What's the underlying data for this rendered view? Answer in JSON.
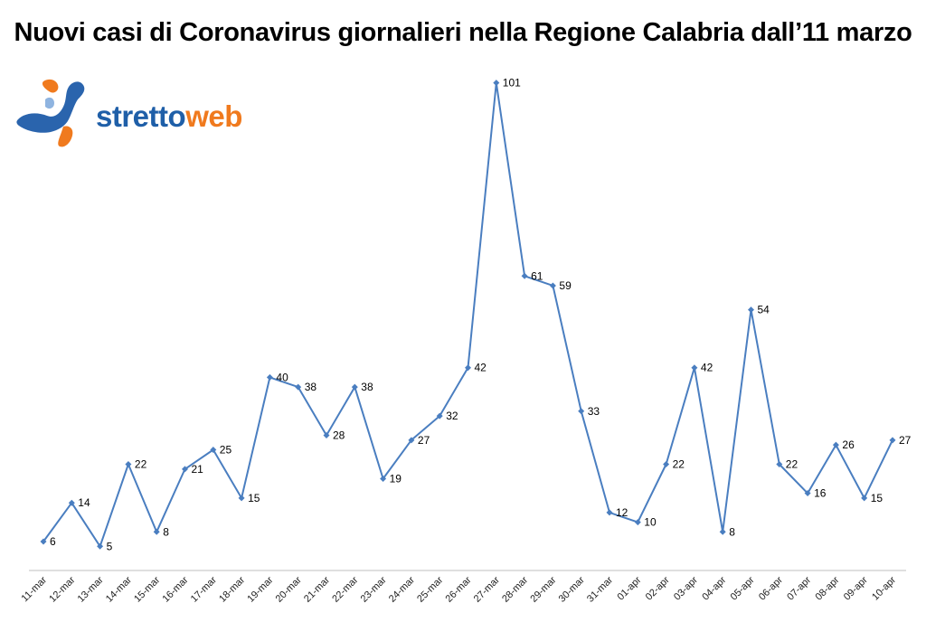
{
  "brand": {
    "part1": "stretto",
    "part2": "web"
  },
  "colors": {
    "series": "#4a7ec0",
    "axis": "#bfbfbf",
    "brand_blue": "#1f5fa8",
    "brand_orange": "#f07a1e"
  },
  "chart_data": {
    "type": "line",
    "title": "Nuovi casi di Coronavirus giornalieri nella Regione Calabria dall’11 marzo",
    "xlabel": "",
    "ylabel": "",
    "ylim": [
      0,
      101
    ],
    "grid": false,
    "legend": "none",
    "categories": [
      "11-mar",
      "12-mar",
      "13-mar",
      "14-mar",
      "15-mar",
      "16-mar",
      "17-mar",
      "18-mar",
      "19-mar",
      "20-mar",
      "21-mar",
      "22-mar",
      "23-mar",
      "24-mar",
      "25-mar",
      "26-mar",
      "27-mar",
      "28-mar",
      "29-mar",
      "30-mar",
      "31-mar",
      "01-apr",
      "02-apr",
      "03-apr",
      "04-apr",
      "05-apr",
      "06-apr",
      "07-apr",
      "08-apr",
      "09-apr",
      "10-apr"
    ],
    "series": [
      {
        "values": [
          6,
          14,
          5,
          22,
          8,
          21,
          25,
          15,
          40,
          38,
          28,
          38,
          19,
          27,
          32,
          42,
          101,
          61,
          59,
          33,
          12,
          10,
          22,
          42,
          8,
          54,
          22,
          16,
          26,
          15,
          27
        ]
      }
    ]
  }
}
